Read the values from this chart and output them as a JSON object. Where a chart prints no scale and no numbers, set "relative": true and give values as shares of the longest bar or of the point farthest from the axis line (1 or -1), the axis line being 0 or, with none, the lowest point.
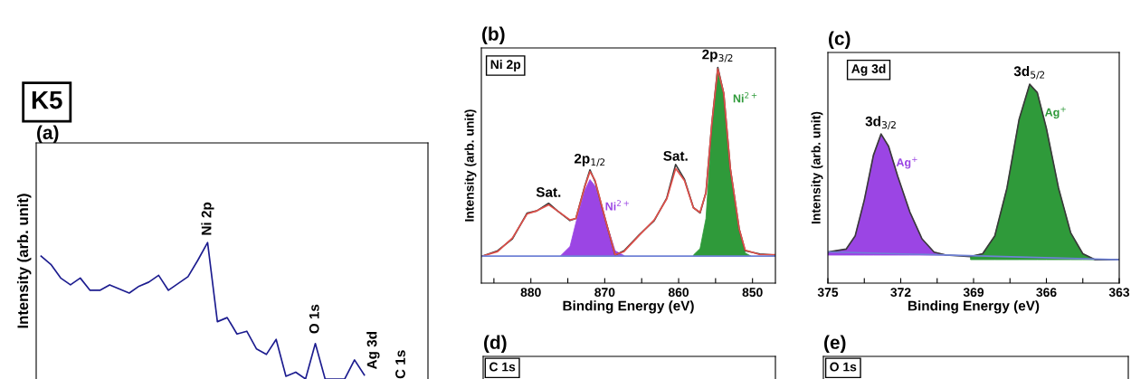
{
  "chart_data": [
    {
      "type": "line",
      "title": "(a)",
      "ylabel": "Intensity (arb. unit)",
      "relative": true,
      "categories": [
        null,
        null,
        null,
        null,
        null,
        null,
        null,
        null,
        null,
        null,
        null,
        null,
        null,
        null,
        null,
        null,
        null,
        null,
        null,
        null,
        null,
        null,
        null,
        null,
        null,
        null,
        null,
        null,
        null,
        null,
        null,
        null,
        null,
        null
      ],
      "series": [
        {
          "color": "#1c1c8f",
          "values": [
            0.9,
            0.84,
            0.74,
            0.69,
            0.74,
            0.65,
            0.65,
            0.69,
            0.66,
            0.63,
            0.68,
            0.71,
            0.76,
            0.65,
            0.7,
            0.75,
            0.87,
            1.0,
            0.42,
            0.45,
            0.33,
            0.35,
            0.22,
            0.18,
            0.29,
            0.02,
            0.05,
            0,
            0.26,
            0,
            0,
            0,
            0.14,
            0.03
          ]
        }
      ],
      "annotations": [
        "K5",
        "Ni 2p",
        "O 1s",
        "Ag 3d",
        "C 1s"
      ]
    },
    {
      "type": "line",
      "title": "(b)",
      "xlabel": "Binding Energy (eV)",
      "ylabel": "Intensity (arb. unit)",
      "relative": true,
      "xlim": [
        886.7,
        846.9
      ],
      "xticks": [
        {
          "value": 885,
          "label": null
        },
        880,
        {
          "value": 875,
          "label": null
        },
        870,
        {
          "value": 865,
          "label": null
        },
        860,
        {
          "value": 855,
          "label": null
        },
        850
      ],
      "x": [
        886.6,
        884.5,
        882.5,
        880.5,
        879.2,
        877.6,
        876.4,
        874.7,
        873.9,
        872.7,
        872.0,
        871.3,
        869.8,
        868.6,
        867.4,
        865.3,
        863.3,
        861.6,
        860.4,
        859.2,
        858.0,
        857.1,
        856.3,
        855.5,
        854.7,
        853.9,
        853.0,
        851.8,
        851.0,
        849.0,
        846.9
      ],
      "series": [
        {
          "color": "#3a3a3a",
          "values": [
            0.125,
            0.15,
            0.205,
            0.325,
            0.335,
            0.37,
            0.335,
            0.29,
            0.3,
            0.45,
            0.525,
            0.47,
            0.28,
            0.13,
            0.15,
            0.225,
            0.29,
            0.395,
            0.55,
            0.48,
            0.35,
            0.325,
            0.42,
            0.74,
            1.0,
            0.88,
            0.53,
            0.25,
            0.15,
            0.135,
            0.13
          ]
        },
        {
          "color": "#e0504a",
          "values": [
            0.125,
            0.146,
            0.209,
            0.321,
            0.335,
            0.363,
            0.335,
            0.293,
            0.3,
            0.447,
            0.517,
            0.475,
            0.279,
            0.132,
            0.146,
            0.223,
            0.293,
            0.391,
            0.531,
            0.475,
            0.349,
            0.328,
            0.419,
            0.741,
            0.993,
            0.881,
            0.531,
            0.251,
            0.153,
            0.132,
            0.132
          ]
        },
        {
          "type": "area",
          "name": "Ni$^{2+}$",
          "color": "#9b45e4",
          "x": [
            876.0,
            874.7,
            873.9,
            872.7,
            872.0,
            871.3,
            869.8,
            868.6,
            867.4
          ],
          "values": [
            0.126,
            0.17,
            0.28,
            0.43,
            0.48,
            0.45,
            0.28,
            0.15,
            0.128
          ]
        },
        {
          "type": "area",
          "name": "Ni$^{2+}$",
          "color": "#2f9a3a",
          "x": [
            858.0,
            857.1,
            856.3,
            855.5,
            854.7,
            853.9,
            853.0,
            851.8,
            851.0,
            850.2
          ],
          "values": [
            0.13,
            0.16,
            0.3,
            0.72,
            0.98,
            0.87,
            0.52,
            0.24,
            0.14,
            0.125
          ]
        },
        {
          "color": "#6f82d6",
          "x": [
            886.7,
            846.9
          ],
          "values": [
            0.125,
            0.125
          ]
        }
      ],
      "annotations": [
        "Ni 2p",
        {
          "text": "Sat.",
          "x": 877.6,
          "y": 0.363
        },
        {
          "text": "2p$_{1/2}$",
          "x": 872.0,
          "y": 0.517
        },
        {
          "text": "Sat.",
          "x": 860.4,
          "y": 0.531
        },
        {
          "text": "2p$_{3/2}$",
          "x": 854.7,
          "y": 1.0
        }
      ]
    },
    {
      "type": "line",
      "title": "(c)",
      "xlabel": "Binding Energy (eV)",
      "ylabel": "Intensity (arb. unit)",
      "relative": true,
      "xlim": [
        375,
        363
      ],
      "xticks": [
        375,
        {
          "value": 373.5,
          "label": null
        },
        372,
        {
          "value": 370.5,
          "label": null
        },
        369,
        {
          "value": 367.5,
          "label": null
        },
        366,
        {
          "value": 364.5,
          "label": null
        },
        363
      ],
      "series": [
        {
          "color": "#3a3a3a",
          "x": [
            375,
            374.25,
            373.875,
            373.5,
            373.125,
            372.81,
            372.5,
            372.125,
            371.625,
            371.125,
            370.625,
            370.125,
            369.125,
            368.625,
            368.125,
            367.625,
            367.125,
            366.69,
            366.375,
            366.0,
            365.5,
            365.0,
            364.5,
            364.0,
            363
          ],
          "values": [
            0.156,
            0.171,
            0.238,
            0.418,
            0.643,
            0.75,
            0.688,
            0.538,
            0.358,
            0.223,
            0.156,
            0.141,
            0.134,
            0.148,
            0.238,
            0.478,
            0.823,
            1.0,
            0.958,
            0.778,
            0.478,
            0.253,
            0.148,
            0.118,
            0.118
          ]
        },
        {
          "type": "area",
          "name": "Ag$^{+}$",
          "color": "#9b45e4",
          "x": [
            375,
            374.25,
            373.875,
            373.5,
            373.125,
            372.81,
            372.5,
            372.125,
            371.625,
            371.125,
            370.625,
            370.125
          ],
          "values": [
            0.156,
            0.171,
            0.238,
            0.418,
            0.643,
            0.748,
            0.688,
            0.538,
            0.358,
            0.223,
            0.156,
            0.141
          ]
        },
        {
          "type": "area",
          "name": "Ag$^{+}$",
          "color": "#2f9a3a",
          "x": [
            369.125,
            368.625,
            368.125,
            367.625,
            367.125,
            366.69,
            366.375,
            366.0,
            365.5,
            365.0,
            364.5,
            364.0
          ],
          "values": [
            0.134,
            0.148,
            0.238,
            0.478,
            0.823,
            1.0,
            0.958,
            0.778,
            0.478,
            0.253,
            0.148,
            0.118
          ]
        },
        {
          "color": "#6f82d6",
          "x": [
            375,
            363
          ],
          "values": [
            0.157,
            0.118
          ]
        }
      ],
      "annotations": [
        "Ag 3d",
        {
          "text": "3d$_{3/2}$",
          "x": 372.81,
          "y": 0.748
        },
        {
          "text": "3d$_{5/2}$",
          "x": 366.69,
          "y": 1.0
        }
      ]
    },
    {
      "type": "other",
      "title": "(d)",
      "annotations": [
        "C 1s"
      ]
    },
    {
      "type": "other",
      "title": "(e)",
      "annotations": [
        "O 1s"
      ]
    }
  ]
}
